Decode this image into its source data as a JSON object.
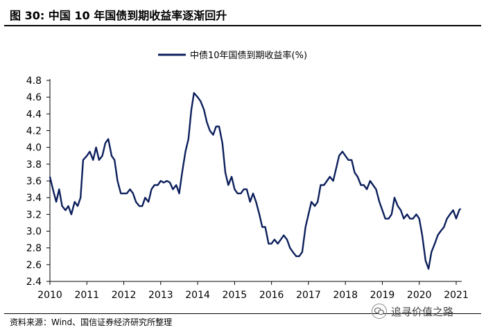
{
  "header": {
    "figure_title": "图 30:  中国 10 年国债到期收益率逐渐回升"
  },
  "footer": {
    "source": "资料来源：Wind、国信证券经济研究所整理",
    "watermark": "追寻价值之路",
    "watermark_icon": "wechat-icon"
  },
  "colors": {
    "line": "#0c1f5c",
    "axis": "#000000"
  },
  "chart_data": {
    "type": "line",
    "title": "",
    "xlabel": "",
    "ylabel": "",
    "legend_position": "top-center",
    "ylim": [
      2.4,
      4.8
    ],
    "xlim": [
      2010.0,
      2021.15
    ],
    "y_ticks": [
      "2.4",
      "2.6",
      "2.8",
      "3.0",
      "3.2",
      "3.4",
      "3.6",
      "3.8",
      "4.0",
      "4.2",
      "4.4",
      "4.6",
      "4.8"
    ],
    "x_ticks": [
      "2010",
      "2011",
      "2012",
      "2013",
      "2014",
      "2015",
      "2016",
      "2017",
      "2018",
      "2019",
      "2020",
      "2021"
    ],
    "series": [
      {
        "name": "中债10年国债到期收益率(%)",
        "x": [
          2010.0,
          2010.08,
          2010.17,
          2010.25,
          2010.33,
          2010.42,
          2010.5,
          2010.58,
          2010.67,
          2010.75,
          2010.83,
          2010.9,
          2011.0,
          2011.08,
          2011.17,
          2011.25,
          2011.33,
          2011.42,
          2011.5,
          2011.58,
          2011.67,
          2011.75,
          2011.83,
          2011.92,
          2012.0,
          2012.08,
          2012.17,
          2012.25,
          2012.33,
          2012.42,
          2012.5,
          2012.58,
          2012.67,
          2012.75,
          2012.83,
          2012.92,
          2013.0,
          2013.08,
          2013.17,
          2013.25,
          2013.33,
          2013.42,
          2013.5,
          2013.58,
          2013.67,
          2013.75,
          2013.83,
          2013.9,
          2014.0,
          2014.08,
          2014.17,
          2014.25,
          2014.33,
          2014.42,
          2014.5,
          2014.58,
          2014.67,
          2014.75,
          2014.83,
          2014.92,
          2015.0,
          2015.08,
          2015.17,
          2015.25,
          2015.33,
          2015.42,
          2015.5,
          2015.58,
          2015.67,
          2015.75,
          2015.83,
          2015.92,
          2016.0,
          2016.08,
          2016.17,
          2016.25,
          2016.33,
          2016.42,
          2016.5,
          2016.58,
          2016.67,
          2016.75,
          2016.83,
          2016.92,
          2017.0,
          2017.08,
          2017.17,
          2017.25,
          2017.33,
          2017.42,
          2017.5,
          2017.58,
          2017.67,
          2017.75,
          2017.83,
          2017.92,
          2018.0,
          2018.08,
          2018.17,
          2018.25,
          2018.33,
          2018.42,
          2018.5,
          2018.58,
          2018.67,
          2018.75,
          2018.83,
          2018.92,
          2019.0,
          2019.08,
          2019.17,
          2019.25,
          2019.33,
          2019.42,
          2019.5,
          2019.58,
          2019.67,
          2019.75,
          2019.83,
          2019.92,
          2020.0,
          2020.08,
          2020.17,
          2020.25,
          2020.33,
          2020.42,
          2020.5,
          2020.58,
          2020.67,
          2020.75,
          2020.83,
          2020.92,
          2021.0,
          2021.08,
          2021.12
        ],
        "y": [
          3.65,
          3.5,
          3.35,
          3.5,
          3.3,
          3.25,
          3.3,
          3.2,
          3.35,
          3.3,
          3.4,
          3.85,
          3.9,
          3.95,
          3.85,
          4.0,
          3.85,
          3.9,
          4.05,
          4.1,
          3.9,
          3.85,
          3.6,
          3.45,
          3.45,
          3.45,
          3.5,
          3.45,
          3.35,
          3.3,
          3.3,
          3.4,
          3.35,
          3.5,
          3.55,
          3.55,
          3.6,
          3.58,
          3.6,
          3.58,
          3.5,
          3.55,
          3.45,
          3.7,
          3.95,
          4.1,
          4.45,
          4.65,
          4.6,
          4.55,
          4.45,
          4.3,
          4.2,
          4.15,
          4.25,
          4.25,
          4.05,
          3.7,
          3.55,
          3.65,
          3.5,
          3.45,
          3.45,
          3.5,
          3.5,
          3.35,
          3.45,
          3.35,
          3.2,
          3.05,
          3.05,
          2.85,
          2.85,
          2.9,
          2.85,
          2.9,
          2.95,
          2.9,
          2.8,
          2.75,
          2.7,
          2.7,
          2.75,
          3.05,
          3.2,
          3.35,
          3.3,
          3.35,
          3.55,
          3.55,
          3.6,
          3.65,
          3.6,
          3.75,
          3.9,
          3.95,
          3.9,
          3.85,
          3.85,
          3.7,
          3.65,
          3.55,
          3.55,
          3.5,
          3.6,
          3.55,
          3.5,
          3.35,
          3.25,
          3.15,
          3.15,
          3.2,
          3.4,
          3.3,
          3.25,
          3.15,
          3.2,
          3.15,
          3.15,
          3.2,
          3.15,
          2.95,
          2.65,
          2.55,
          2.75,
          2.85,
          2.95,
          3.0,
          3.05,
          3.15,
          3.2,
          3.25,
          3.15,
          3.25,
          3.27
        ]
      }
    ]
  }
}
